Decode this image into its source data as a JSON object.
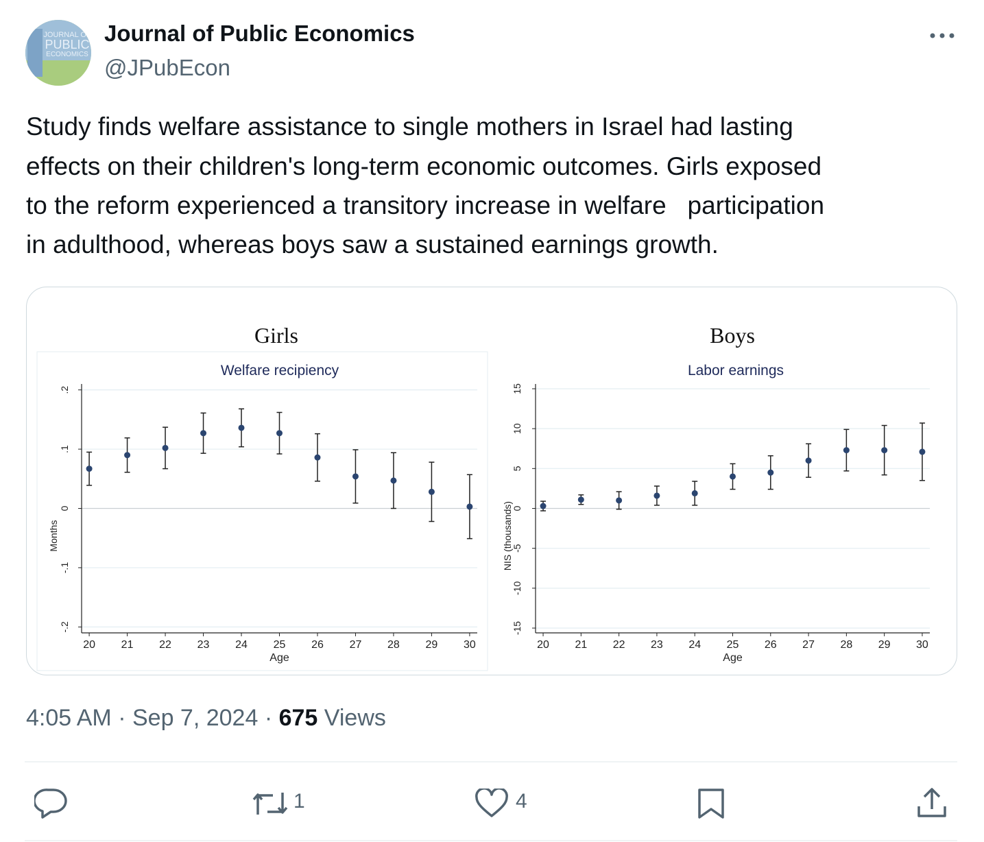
{
  "tweet": {
    "avatar_text": [
      "JOURNAL OF",
      "PUBLIC",
      "ECONOMICS"
    ],
    "author": "Journal of Public Economics",
    "handle": "@JPubEcon",
    "text_lines": [
      "Study finds welfare assistance to single mothers in Israel had lasting",
      "effects on their children's long-term economic outcomes. Girls exposed",
      "to the reform experienced a transitory increase in welfare   participation",
      "in adulthood, whereas boys saw a sustained earnings growth."
    ],
    "time": "4:05 AM",
    "separator": "·",
    "date": "Sep 7, 2024",
    "views": "675",
    "views_label": "Views",
    "retweets": "1",
    "likes": "4"
  },
  "chart_data": [
    {
      "type": "errorbar",
      "title": "Girls",
      "subtitle": "Welfare recipiency",
      "ylabel": "Months",
      "xlabel": "Age",
      "x": [
        20,
        21,
        22,
        23,
        24,
        25,
        26,
        27,
        28,
        29,
        30
      ],
      "values": [
        0.067,
        0.09,
        0.102,
        0.127,
        0.136,
        0.127,
        0.086,
        0.054,
        0.047,
        0.028,
        0.003
      ],
      "errors": [
        0.028,
        0.029,
        0.035,
        0.034,
        0.032,
        0.035,
        0.04,
        0.045,
        0.047,
        0.05,
        0.054
      ],
      "color": "#2b4570",
      "xlim": [
        19.8,
        30.2
      ],
      "ylim": [
        -0.21,
        0.21
      ],
      "xticks": [
        20,
        21,
        22,
        23,
        24,
        25,
        26,
        27,
        28,
        29,
        30
      ],
      "yticks": [
        {
          "value": -0.2,
          "label": "-.2"
        },
        {
          "value": -0.1,
          "label": "-.1"
        },
        0,
        {
          "value": 0.1,
          "label": ".1"
        },
        {
          "value": 0.2,
          "label": ".2"
        }
      ],
      "grid": true
    },
    {
      "type": "errorbar",
      "title": "Boys",
      "subtitle": "Labor earnings",
      "ylabel": "NIS (thousands)",
      "xlabel": "Age",
      "x": [
        20,
        21,
        22,
        23,
        24,
        25,
        26,
        27,
        28,
        29,
        30
      ],
      "values": [
        0.3,
        1.1,
        1.0,
        1.6,
        1.9,
        4.0,
        4.5,
        6.0,
        7.3,
        7.3,
        7.1
      ],
      "errors": [
        0.6,
        0.6,
        1.1,
        1.2,
        1.5,
        1.6,
        2.1,
        2.1,
        2.6,
        3.1,
        3.6
      ],
      "color": "#2b4570",
      "xlim": [
        19.8,
        30.2
      ],
      "ylim": [
        -15.6,
        15.6
      ],
      "xticks": [
        20,
        21,
        22,
        23,
        24,
        25,
        26,
        27,
        28,
        29,
        30
      ],
      "yticks": [
        -15,
        -10,
        -5,
        0,
        5,
        10,
        15
      ],
      "grid": true
    }
  ]
}
